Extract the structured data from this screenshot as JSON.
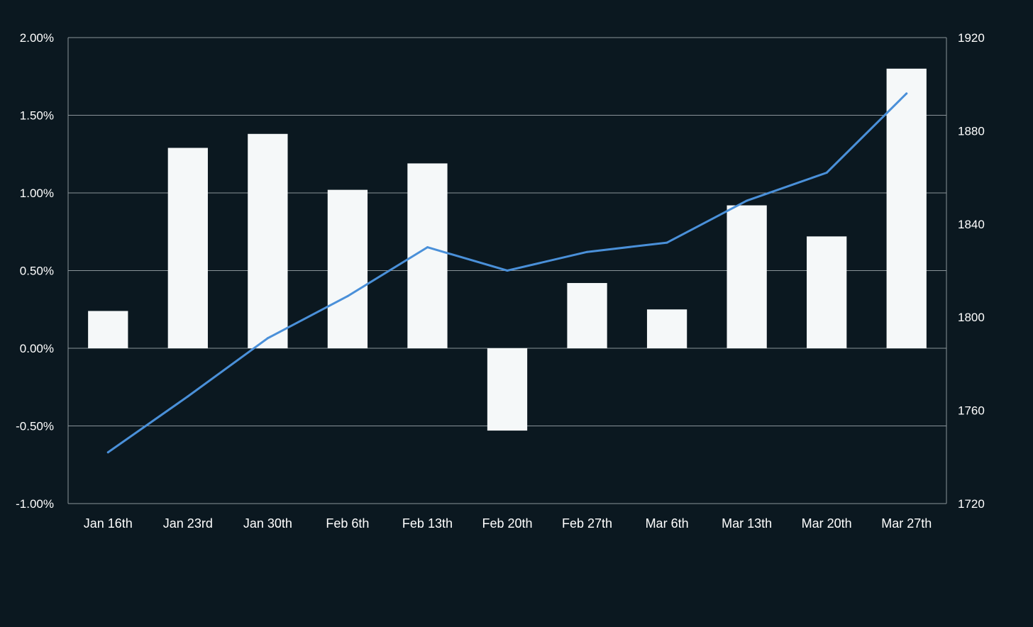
{
  "colors": {
    "background": "#0b1820",
    "bars": "#f5f8f9",
    "line": "#4a90d9",
    "grid": "#8a9399",
    "text": "#ffffff"
  },
  "chart_data": {
    "type": "bar",
    "title": "",
    "xlabel": "",
    "ylabel": "",
    "y2label": "",
    "categories": [
      "Jan 16th",
      "Jan 23rd",
      "Jan 30th",
      "Feb 6th",
      "Feb 13th",
      "Feb 20th",
      "Feb 27th",
      "Mar 6th",
      "Mar 13th",
      "Mar 20th",
      "Mar 27th"
    ],
    "ylim": [
      -1.0,
      2.0
    ],
    "y_ticks": [
      "-1.00%",
      "-0.50%",
      "0.00%",
      "0.50%",
      "1.00%",
      "1.50%",
      "2.00%"
    ],
    "y_tick_values": [
      -1.0,
      -0.5,
      0.0,
      0.5,
      1.0,
      1.5,
      2.0
    ],
    "y2lim": [
      1720,
      1920
    ],
    "y2_ticks": [
      "1720",
      "1760",
      "1800",
      "1840",
      "1880",
      "1920"
    ],
    "y2_tick_values": [
      1720,
      1760,
      1800,
      1840,
      1880,
      1920
    ],
    "grid": true,
    "legend": "none",
    "series": [
      {
        "type": "bar",
        "axis": "left",
        "unit": "%",
        "values": [
          0.24,
          1.29,
          1.38,
          1.02,
          1.19,
          -0.53,
          0.42,
          0.25,
          0.92,
          0.72,
          1.8
        ]
      },
      {
        "type": "line",
        "axis": "right",
        "values": [
          1742,
          1766,
          1791,
          1809,
          1830,
          1820,
          1828,
          1832,
          1850,
          1862,
          1896
        ]
      }
    ]
  }
}
